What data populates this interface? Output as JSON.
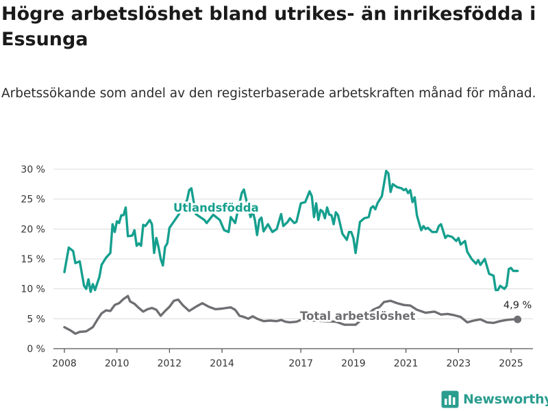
{
  "title": "Högre arbetslöshet bland utrikes- än inrikesfödda i Essunga",
  "subtitle": "Arbetssökande som andel av den registerbaserade arbetskraften månad för månad.",
  "logo_text": "Newsworthy",
  "colors": {
    "utrikes": "#159f8e",
    "total": "#6f6e72",
    "grid": "#dcdcdc",
    "axis": "#555555",
    "logo": "#2a9d8f"
  },
  "chart_data": {
    "type": "line",
    "ylim": [
      0,
      30
    ],
    "yticks": [
      0,
      5,
      10,
      15,
      20,
      25,
      30
    ],
    "ytick_labels": [
      "0 %",
      "5 %",
      "10 %",
      "15 %",
      "20 %",
      "25 %",
      "30 %"
    ],
    "xlim": [
      "2007-08",
      "2025-11"
    ],
    "xticks": [
      "2008-01",
      "2010-01",
      "2012-01",
      "2014-01",
      "2017-01",
      "2019-01",
      "2021-01",
      "2023-01",
      "2025-01"
    ],
    "xtick_labels": [
      "2008",
      "2010",
      "2012",
      "2014",
      "2017",
      "2019",
      "2021",
      "2023",
      "2025"
    ],
    "grid": true,
    "series": [
      {
        "name": "Utlandsfödda",
        "color": "#159f8e",
        "points": [
          [
            "2008-01",
            12.8
          ],
          [
            "2008-03",
            16.9
          ],
          [
            "2008-05",
            16.3
          ],
          [
            "2008-06",
            14.3
          ],
          [
            "2008-08",
            14.6
          ],
          [
            "2008-10",
            10.5
          ],
          [
            "2008-11",
            10.0
          ],
          [
            "2008-12",
            11.6
          ],
          [
            "2009-01",
            9.5
          ],
          [
            "2009-02",
            10.8
          ],
          [
            "2009-03",
            9.8
          ],
          [
            "2009-05",
            12.0
          ],
          [
            "2009-06",
            14.0
          ],
          [
            "2009-08",
            15.2
          ],
          [
            "2009-10",
            16.0
          ],
          [
            "2009-11",
            20.8
          ],
          [
            "2009-12",
            19.5
          ],
          [
            "2010-01",
            21.3
          ],
          [
            "2010-02",
            21.0
          ],
          [
            "2010-03",
            22.3
          ],
          [
            "2010-04",
            22.3
          ],
          [
            "2010-05",
            23.6
          ],
          [
            "2010-06",
            18.8
          ],
          [
            "2010-08",
            18.9
          ],
          [
            "2010-09",
            19.8
          ],
          [
            "2010-10",
            17.2
          ],
          [
            "2010-11",
            17.6
          ],
          [
            "2010-12",
            17.2
          ],
          [
            "2011-01",
            20.7
          ],
          [
            "2011-02",
            20.5
          ],
          [
            "2011-03",
            21.0
          ],
          [
            "2011-04",
            21.5
          ],
          [
            "2011-05",
            20.8
          ],
          [
            "2011-06",
            16.0
          ],
          [
            "2011-07",
            18.5
          ],
          [
            "2011-08",
            17.0
          ],
          [
            "2011-09",
            15.0
          ],
          [
            "2011-10",
            13.9
          ],
          [
            "2011-11",
            17.0
          ],
          [
            "2011-12",
            17.6
          ],
          [
            "2012-01",
            20.2
          ],
          [
            "2012-05",
            22.3
          ],
          [
            "2012-09",
            24.8
          ],
          [
            "2012-10",
            26.5
          ],
          [
            "2012-11",
            26.8
          ],
          [
            "2013-01",
            22.5
          ],
          [
            "2013-05",
            21.5
          ],
          [
            "2013-06",
            21.0
          ],
          [
            "2013-09",
            22.4
          ],
          [
            "2013-12",
            21.5
          ],
          [
            "2014-02",
            19.8
          ],
          [
            "2014-04",
            19.5
          ],
          [
            "2014-05",
            22.0
          ],
          [
            "2014-07",
            21.0
          ],
          [
            "2014-10",
            26.0
          ],
          [
            "2014-11",
            26.6
          ],
          [
            "2014-12",
            25.0
          ],
          [
            "2015-02",
            22.0
          ],
          [
            "2015-03",
            23.0
          ],
          [
            "2015-04",
            21.5
          ],
          [
            "2015-05",
            19.0
          ],
          [
            "2015-06",
            21.5
          ],
          [
            "2015-07",
            21.9
          ],
          [
            "2015-08",
            19.6
          ],
          [
            "2015-10",
            20.8
          ],
          [
            "2015-12",
            19.5
          ],
          [
            "2016-02",
            20.0
          ],
          [
            "2016-04",
            22.5
          ],
          [
            "2016-05",
            20.5
          ],
          [
            "2016-07",
            21.2
          ],
          [
            "2016-08",
            21.8
          ],
          [
            "2016-10",
            21.0
          ],
          [
            "2016-11",
            21.2
          ],
          [
            "2017-01",
            24.3
          ],
          [
            "2017-03",
            24.5
          ],
          [
            "2017-05",
            26.3
          ],
          [
            "2017-06",
            25.5
          ],
          [
            "2017-07",
            22.0
          ],
          [
            "2017-08",
            24.3
          ],
          [
            "2017-09",
            21.5
          ],
          [
            "2017-10",
            23.2
          ],
          [
            "2017-11",
            22.9
          ],
          [
            "2017-12",
            21.8
          ],
          [
            "2018-01",
            23.6
          ],
          [
            "2018-02",
            22.4
          ],
          [
            "2018-03",
            22.3
          ],
          [
            "2018-04",
            20.8
          ],
          [
            "2018-05",
            22.8
          ],
          [
            "2018-06",
            22.3
          ],
          [
            "2018-08",
            19.2
          ],
          [
            "2018-10",
            18.2
          ],
          [
            "2018-11",
            19.5
          ],
          [
            "2018-12",
            19.5
          ],
          [
            "2019-01",
            18.5
          ],
          [
            "2019-02",
            16.0
          ],
          [
            "2019-04",
            21.2
          ],
          [
            "2019-06",
            21.8
          ],
          [
            "2019-08",
            22.0
          ],
          [
            "2019-09",
            23.5
          ],
          [
            "2019-10",
            23.8
          ],
          [
            "2019-11",
            23.3
          ],
          [
            "2019-12",
            24.3
          ],
          [
            "2020-02",
            25.5
          ],
          [
            "2020-04",
            29.7
          ],
          [
            "2020-05",
            29.3
          ],
          [
            "2020-06",
            26.2
          ],
          [
            "2020-07",
            27.5
          ],
          [
            "2020-09",
            27.0
          ],
          [
            "2020-11",
            26.8
          ],
          [
            "2020-12",
            26.5
          ],
          [
            "2021-01",
            26.7
          ],
          [
            "2021-02",
            26.0
          ],
          [
            "2021-03",
            26.5
          ],
          [
            "2021-04",
            24.5
          ],
          [
            "2021-05",
            25.3
          ],
          [
            "2021-06",
            22.3
          ],
          [
            "2021-07",
            21.0
          ],
          [
            "2021-08",
            19.8
          ],
          [
            "2021-09",
            20.5
          ],
          [
            "2021-10",
            20.0
          ],
          [
            "2021-11",
            20.2
          ],
          [
            "2022-01",
            19.5
          ],
          [
            "2022-03",
            19.5
          ],
          [
            "2022-04",
            20.5
          ],
          [
            "2022-05",
            20.8
          ],
          [
            "2022-07",
            18.5
          ],
          [
            "2022-08",
            18.9
          ],
          [
            "2022-10",
            18.7
          ],
          [
            "2022-12",
            18.0
          ],
          [
            "2023-01",
            18.5
          ],
          [
            "2023-02",
            17.4
          ],
          [
            "2023-04",
            18.0
          ],
          [
            "2023-05",
            16.2
          ],
          [
            "2023-07",
            15.0
          ],
          [
            "2023-09",
            14.2
          ],
          [
            "2023-10",
            14.8
          ],
          [
            "2023-11",
            14.0
          ],
          [
            "2024-01",
            15.0
          ],
          [
            "2024-03",
            12.5
          ],
          [
            "2024-05",
            12.2
          ],
          [
            "2024-06",
            9.8
          ],
          [
            "2024-07",
            9.8
          ],
          [
            "2024-08",
            10.5
          ],
          [
            "2024-10",
            10.0
          ],
          [
            "2024-11",
            10.5
          ],
          [
            "2024-12",
            13.3
          ],
          [
            "2025-01",
            13.5
          ],
          [
            "2025-02",
            13.0
          ],
          [
            "2025-04",
            13.0
          ]
        ]
      },
      {
        "name": "Total arbetslöshet",
        "color": "#6f6e72",
        "points": [
          [
            "2008-01",
            3.6
          ],
          [
            "2008-04",
            3.0
          ],
          [
            "2008-06",
            2.5
          ],
          [
            "2008-08",
            2.8
          ],
          [
            "2008-11",
            2.9
          ],
          [
            "2009-02",
            3.6
          ],
          [
            "2009-04",
            4.8
          ],
          [
            "2009-06",
            5.9
          ],
          [
            "2009-08",
            6.4
          ],
          [
            "2009-10",
            6.3
          ],
          [
            "2009-12",
            7.3
          ],
          [
            "2010-02",
            7.6
          ],
          [
            "2010-04",
            8.3
          ],
          [
            "2010-06",
            8.8
          ],
          [
            "2010-07",
            7.9
          ],
          [
            "2010-09",
            7.5
          ],
          [
            "2010-11",
            6.8
          ],
          [
            "2011-01",
            6.2
          ],
          [
            "2011-03",
            6.6
          ],
          [
            "2011-05",
            6.8
          ],
          [
            "2011-07",
            6.5
          ],
          [
            "2011-09",
            5.5
          ],
          [
            "2011-11",
            6.3
          ],
          [
            "2012-01",
            7.0
          ],
          [
            "2012-03",
            8.0
          ],
          [
            "2012-05",
            8.2
          ],
          [
            "2012-07",
            7.3
          ],
          [
            "2012-10",
            6.3
          ],
          [
            "2013-01",
            7.0
          ],
          [
            "2013-04",
            7.6
          ],
          [
            "2013-07",
            7.0
          ],
          [
            "2013-10",
            6.6
          ],
          [
            "2014-01",
            6.7
          ],
          [
            "2014-05",
            6.9
          ],
          [
            "2014-07",
            6.5
          ],
          [
            "2014-09",
            5.5
          ],
          [
            "2014-11",
            5.3
          ],
          [
            "2015-01",
            5.0
          ],
          [
            "2015-03",
            5.4
          ],
          [
            "2015-05",
            5.0
          ],
          [
            "2015-08",
            4.6
          ],
          [
            "2015-11",
            4.7
          ],
          [
            "2016-02",
            4.6
          ],
          [
            "2016-04",
            4.8
          ],
          [
            "2016-06",
            4.5
          ],
          [
            "2016-08",
            4.4
          ],
          [
            "2016-11",
            4.5
          ],
          [
            "2017-01",
            4.8
          ],
          [
            "2018-05",
            4.5
          ],
          [
            "2018-09",
            4.0
          ],
          [
            "2019-02",
            4.0
          ],
          [
            "2019-10",
            6.5
          ],
          [
            "2020-01",
            7.0
          ],
          [
            "2020-03",
            7.8
          ],
          [
            "2020-06",
            8.0
          ],
          [
            "2020-09",
            7.6
          ],
          [
            "2020-12",
            7.3
          ],
          [
            "2021-03",
            7.2
          ],
          [
            "2021-06",
            6.5
          ],
          [
            "2021-10",
            6.0
          ],
          [
            "2022-02",
            6.2
          ],
          [
            "2022-05",
            5.7
          ],
          [
            "2022-08",
            5.8
          ],
          [
            "2022-11",
            5.6
          ],
          [
            "2023-02",
            5.3
          ],
          [
            "2023-05",
            4.4
          ],
          [
            "2023-08",
            4.7
          ],
          [
            "2023-11",
            4.9
          ],
          [
            "2024-02",
            4.4
          ],
          [
            "2024-05",
            4.3
          ],
          [
            "2024-08",
            4.6
          ],
          [
            "2024-11",
            4.8
          ],
          [
            "2025-02",
            4.9
          ],
          [
            "2025-04",
            4.9
          ]
        ]
      }
    ],
    "annotations": [
      {
        "text": "Utlandsfödda",
        "series": 0
      },
      {
        "text": "Total arbetslöshet",
        "series": 1
      },
      {
        "text": "4,9 %",
        "series": 1,
        "at": "end"
      }
    ]
  }
}
